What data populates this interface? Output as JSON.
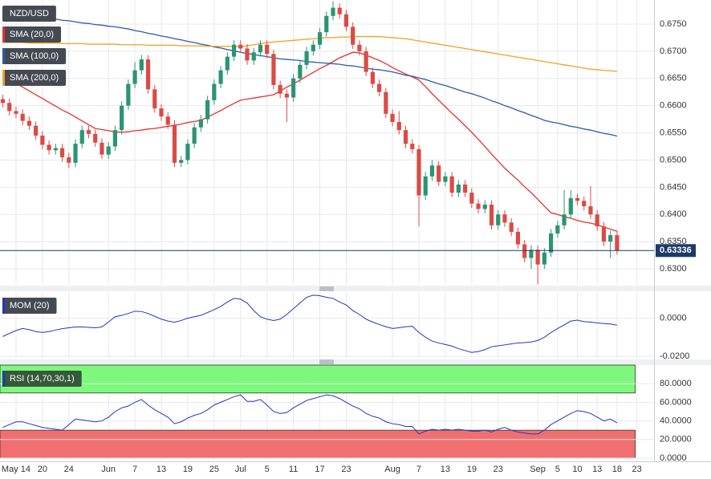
{
  "chart_data": {
    "type": "candlestick",
    "title": "NZD/USD",
    "categories": [
      null,
      null,
      "May 14",
      null,
      null,
      null,
      "20",
      null,
      null,
      null,
      "24",
      null,
      null,
      null,
      null,
      null,
      "Jun",
      null,
      null,
      null,
      "7",
      null,
      null,
      null,
      "13",
      null,
      null,
      null,
      "19",
      null,
      null,
      null,
      "25",
      null,
      null,
      null,
      "Jul",
      null,
      null,
      null,
      "5",
      null,
      null,
      null,
      "11",
      null,
      null,
      null,
      "17",
      null,
      null,
      null,
      "23",
      null,
      null,
      null,
      null,
      null,
      null,
      "Aug",
      null,
      null,
      null,
      "7",
      null,
      null,
      null,
      "13",
      null,
      null,
      null,
      "19",
      null,
      null,
      null,
      "23",
      null,
      null,
      null,
      null,
      null,
      "Sep",
      null,
      null,
      "5",
      null,
      null,
      "10",
      null,
      null,
      "13",
      null,
      null,
      "18",
      null,
      null,
      "23"
    ],
    "open": [
      0.6612,
      0.6605,
      0.659,
      0.6585,
      0.6572,
      0.6563,
      0.6545,
      0.6528,
      0.6518,
      0.6522,
      0.6505,
      0.6495,
      0.653,
      0.6555,
      0.6548,
      0.6532,
      0.651,
      0.6525,
      0.6555,
      0.66,
      0.664,
      0.6665,
      0.6685,
      0.663,
      0.6595,
      0.658,
      0.6565,
      0.6495,
      0.65,
      0.653,
      0.656,
      0.6575,
      0.661,
      0.664,
      0.6665,
      0.669,
      0.6712,
      0.6705,
      0.6683,
      0.6698,
      0.6712,
      0.6695,
      0.6638,
      0.6622,
      0.6615,
      0.665,
      0.6675,
      0.67,
      0.6712,
      0.6735,
      0.6765,
      0.678,
      0.6768,
      0.6745,
      0.6712,
      0.67,
      0.6662,
      0.664,
      0.6625,
      0.6585,
      0.657,
      0.6555,
      0.653,
      0.652,
      0.6435,
      0.647,
      0.649,
      0.646,
      0.647,
      0.644,
      0.6455,
      0.644,
      0.642,
      0.641,
      0.6418,
      0.638,
      0.64,
      0.6385,
      0.6368,
      0.6345,
      0.632,
      0.6335,
      0.6308,
      0.633,
      0.6365,
      0.638,
      0.64,
      0.643,
      0.6425,
      0.6415,
      0.64,
      0.6378,
      0.635,
      0.6362,
      null,
      null,
      null
    ],
    "high": [
      0.662,
      0.6613,
      0.6598,
      0.6593,
      0.658,
      0.6571,
      0.6553,
      0.6536,
      0.653,
      0.653,
      0.6513,
      0.6538,
      0.6563,
      0.6563,
      0.6556,
      0.654,
      0.6533,
      0.6563,
      0.6608,
      0.6648,
      0.668,
      0.6693,
      0.6693,
      0.6638,
      0.6603,
      0.6588,
      0.6573,
      0.6508,
      0.6538,
      0.6568,
      0.6583,
      0.6618,
      0.6648,
      0.6673,
      0.6698,
      0.672,
      0.672,
      0.6713,
      0.6706,
      0.672,
      0.672,
      0.6703,
      0.6646,
      0.663,
      0.6658,
      0.6683,
      0.6708,
      0.672,
      0.6743,
      0.6773,
      0.6792,
      0.6788,
      0.6776,
      0.6753,
      0.672,
      0.6708,
      0.667,
      0.6648,
      0.6633,
      0.6593,
      0.659,
      0.6563,
      0.6538,
      0.6528,
      0.6478,
      0.65,
      0.6498,
      0.6478,
      0.6478,
      0.6463,
      0.6463,
      0.6448,
      0.6428,
      0.6426,
      0.6426,
      0.6408,
      0.6408,
      0.6393,
      0.6376,
      0.6353,
      0.6343,
      0.6343,
      0.6338,
      0.6373,
      0.6388,
      0.6445,
      0.6445,
      0.6438,
      0.6433,
      0.6452,
      0.6408,
      0.6386,
      0.637,
      0.637,
      null,
      null,
      null
    ],
    "low": [
      0.6597,
      0.6582,
      0.6577,
      0.6564,
      0.6555,
      0.6537,
      0.652,
      0.651,
      0.651,
      0.6497,
      0.6485,
      0.6487,
      0.6522,
      0.654,
      0.6524,
      0.6502,
      0.6502,
      0.6517,
      0.6547,
      0.6592,
      0.6632,
      0.6657,
      0.6622,
      0.6587,
      0.6572,
      0.6557,
      0.6487,
      0.6487,
      0.6492,
      0.6522,
      0.6552,
      0.6567,
      0.6602,
      0.6632,
      0.6657,
      0.6682,
      0.6697,
      0.6675,
      0.6675,
      0.669,
      0.6687,
      0.663,
      0.6614,
      0.657,
      0.6607,
      0.6642,
      0.6667,
      0.6692,
      0.6704,
      0.6727,
      0.6757,
      0.676,
      0.6737,
      0.6704,
      0.6692,
      0.6654,
      0.6632,
      0.6617,
      0.6577,
      0.6562,
      0.6547,
      0.6522,
      0.6512,
      0.6378,
      0.6427,
      0.6462,
      0.6452,
      0.6452,
      0.6432,
      0.6432,
      0.6432,
      0.6412,
      0.6402,
      0.6402,
      0.6372,
      0.6372,
      0.6377,
      0.636,
      0.6337,
      0.6312,
      0.63,
      0.6272,
      0.63,
      0.6322,
      0.6357,
      0.6372,
      0.6392,
      0.6417,
      0.6407,
      0.6392,
      0.637,
      0.6342,
      0.632,
      0.6326,
      null,
      null,
      null
    ],
    "close": [
      0.6605,
      0.659,
      0.6585,
      0.6572,
      0.6563,
      0.6545,
      0.6528,
      0.6518,
      0.6522,
      0.6505,
      0.6495,
      0.653,
      0.6555,
      0.6548,
      0.6532,
      0.651,
      0.6525,
      0.6555,
      0.66,
      0.664,
      0.6665,
      0.6685,
      0.663,
      0.6595,
      0.658,
      0.6565,
      0.6495,
      0.65,
      0.653,
      0.656,
      0.6575,
      0.661,
      0.664,
      0.6665,
      0.669,
      0.6712,
      0.6705,
      0.6683,
      0.6698,
      0.6712,
      0.6695,
      0.6638,
      0.6622,
      0.6615,
      0.665,
      0.6675,
      0.67,
      0.6712,
      0.6735,
      0.6765,
      0.678,
      0.6768,
      0.6745,
      0.6712,
      0.67,
      0.6662,
      0.664,
      0.6625,
      0.6585,
      0.657,
      0.6555,
      0.653,
      0.652,
      0.6435,
      0.647,
      0.649,
      0.646,
      0.647,
      0.644,
      0.6455,
      0.644,
      0.642,
      0.641,
      0.6418,
      0.638,
      0.64,
      0.6385,
      0.6368,
      0.6345,
      0.632,
      0.6335,
      0.6308,
      0.633,
      0.6365,
      0.638,
      0.64,
      0.643,
      0.6425,
      0.6415,
      0.64,
      0.6378,
      0.635,
      0.6362,
      0.63336,
      null,
      null,
      null
    ],
    "up_color": "#2b9474",
    "down_color": "#dc4a44",
    "ylim": [
      0.62706,
      0.67942
    ],
    "yticks": [
      {
        "value": 0.63,
        "label": "0.6300"
      },
      {
        "value": 0.635,
        "label": "0.6350"
      },
      {
        "value": 0.64,
        "label": "0.6400"
      },
      {
        "value": 0.645,
        "label": "0.6450"
      },
      {
        "value": 0.65,
        "label": "0.6500"
      },
      {
        "value": 0.655,
        "label": "0.6550"
      },
      {
        "value": 0.66,
        "label": "0.6600"
      },
      {
        "value": 0.665,
        "label": "0.6650"
      },
      {
        "value": 0.67,
        "label": "0.6700"
      },
      {
        "value": 0.675,
        "label": "0.6750"
      }
    ],
    "last_price": 0.63336,
    "grid": true,
    "overlays": [
      {
        "name": "SMA (20,0)",
        "color": "#e8322b",
        "values": [
          0.6655,
          0.6648,
          0.6641,
          0.6634,
          0.6627,
          0.662,
          0.6613,
          0.6606,
          0.6599,
          0.6592,
          0.6586,
          0.6579,
          0.6572,
          0.6565,
          0.6558,
          0.6556,
          0.6554,
          0.6552,
          0.6551,
          0.6552,
          0.6554,
          0.6555,
          0.6557,
          0.6558,
          0.656,
          0.6562,
          0.6564,
          0.6566,
          0.6569,
          0.6571,
          0.6573,
          0.6579,
          0.6585,
          0.6591,
          0.6598,
          0.6604,
          0.661,
          0.6612,
          0.6614,
          0.6616,
          0.6618,
          0.662,
          0.6627,
          0.6634,
          0.664,
          0.6647,
          0.6654,
          0.6661,
          0.6668,
          0.6674,
          0.6681,
          0.6688,
          0.6693,
          0.6698,
          0.6697,
          0.6693,
          0.6688,
          0.6683,
          0.6677,
          0.667,
          0.6664,
          0.6658,
          0.6653,
          0.6647,
          0.6635,
          0.6622,
          0.661,
          0.6598,
          0.6586,
          0.6575,
          0.6563,
          0.6551,
          0.6538,
          0.6525,
          0.6511,
          0.6498,
          0.6485,
          0.6474,
          0.6463,
          0.6451,
          0.644,
          0.6428,
          0.6415,
          0.6403,
          0.64,
          0.6396,
          0.6393,
          0.6389,
          0.6386,
          0.6384,
          0.6381,
          0.6377,
          0.6373,
          0.6369,
          null,
          null,
          null
        ]
      },
      {
        "name": "SMA (100,0)",
        "color": "#2b5ca8",
        "values": [
          0.6772,
          0.677,
          0.6769,
          0.6767,
          0.6765,
          0.6764,
          0.6762,
          0.6761,
          0.6759,
          0.6757,
          0.6756,
          0.6754,
          0.6752,
          0.6751,
          0.6749,
          0.6748,
          0.6746,
          0.6745,
          0.6743,
          0.6741,
          0.6738,
          0.6736,
          0.6733,
          0.6731,
          0.6728,
          0.6726,
          0.6723,
          0.6721,
          0.6718,
          0.6716,
          0.6713,
          0.6711,
          0.6708,
          0.6706,
          0.6703,
          0.6701,
          0.6698,
          0.6696,
          0.6694,
          0.6692,
          0.669,
          0.6688,
          0.6686,
          0.6685,
          0.6684,
          0.6683,
          0.6681,
          0.668,
          0.6679,
          0.6678,
          0.6677,
          0.6676,
          0.6674,
          0.6673,
          0.6671,
          0.6669,
          0.6667,
          0.6666,
          0.6664,
          0.6662,
          0.6659,
          0.6656,
          0.6654,
          0.6651,
          0.6648,
          0.6644,
          0.664,
          0.6637,
          0.6633,
          0.6629,
          0.6625,
          0.6622,
          0.6618,
          0.6614,
          0.6609,
          0.6605,
          0.66,
          0.6596,
          0.6591,
          0.6587,
          0.6582,
          0.6578,
          0.6573,
          0.657,
          0.6568,
          0.6565,
          0.6562,
          0.656,
          0.6557,
          0.6555,
          0.6552,
          0.6549,
          0.6547,
          0.6544,
          null,
          null,
          null
        ]
      },
      {
        "name": "SMA (200,0)",
        "color": "#f5a020",
        "values": [
          0.6716,
          0.6716,
          0.6716,
          0.6716,
          0.6715,
          0.6715,
          0.6715,
          0.6715,
          0.6715,
          0.6714,
          0.6714,
          0.6714,
          0.6714,
          0.6713,
          0.6713,
          0.6713,
          0.6713,
          0.6713,
          0.6712,
          0.6712,
          0.6712,
          0.6712,
          0.6711,
          0.6711,
          0.6711,
          0.6711,
          0.6711,
          0.671,
          0.671,
          0.671,
          0.671,
          0.6709,
          0.6709,
          0.6709,
          0.6709,
          0.6709,
          0.6708,
          0.671,
          0.6712,
          0.6714,
          0.6716,
          0.6717,
          0.6718,
          0.6719,
          0.672,
          0.6721,
          0.6722,
          0.6723,
          0.6724,
          0.6725,
          0.6725,
          0.6726,
          0.6726,
          0.6727,
          0.6727,
          0.6727,
          0.6727,
          0.6727,
          0.6726,
          0.6725,
          0.6724,
          0.6723,
          0.6721,
          0.6719,
          0.6717,
          0.6715,
          0.6713,
          0.6711,
          0.6709,
          0.6707,
          0.6705,
          0.6703,
          0.6701,
          0.6699,
          0.6697,
          0.6695,
          0.6693,
          0.6691,
          0.6689,
          0.6687,
          0.6685,
          0.6683,
          0.6681,
          0.6679,
          0.6677,
          0.6675,
          0.6673,
          0.6671,
          0.6669,
          0.6667,
          0.6666,
          0.6665,
          0.6664,
          0.6663,
          null,
          null,
          null
        ]
      }
    ],
    "indicators": [
      {
        "type": "line",
        "name": "MOM (20)",
        "color": "#2236c0",
        "ylim": [
          -0.02125,
          0.01375
        ],
        "yticks": [
          {
            "value": 0,
            "label": "0.0000"
          },
          {
            "value": -0.02,
            "label": "-0.0200"
          }
        ],
        "values": [
          -0.0096,
          -0.008,
          -0.0065,
          -0.0054,
          -0.006,
          -0.007,
          -0.0075,
          -0.007,
          -0.0062,
          -0.0055,
          -0.005,
          -0.0046,
          -0.0046,
          -0.0048,
          -0.005,
          -0.0046,
          -0.002,
          0.0008,
          0.0015,
          0.0025,
          0.0037,
          0.0035,
          0.0025,
          0.001,
          -0.0005,
          -0.0015,
          -0.0021,
          -0.0012,
          0.0,
          0.0008,
          0.0015,
          0.003,
          0.0045,
          0.0062,
          0.0085,
          0.0104,
          0.01,
          0.008,
          0.004,
          0.0008,
          -0.0005,
          -0.0012,
          -0.0005,
          0.002,
          0.005,
          0.008,
          0.011,
          0.0121,
          0.0118,
          0.011,
          0.0104,
          0.0085,
          0.007,
          0.004,
          0.002,
          -0.0005,
          -0.002,
          -0.0033,
          -0.0045,
          -0.0054,
          -0.005,
          -0.0045,
          -0.0042,
          -0.0075,
          -0.01,
          -0.012,
          -0.013,
          -0.0138,
          -0.0146,
          -0.016,
          -0.017,
          -0.018,
          -0.0175,
          -0.0165,
          -0.015,
          -0.0145,
          -0.014,
          -0.0135,
          -0.013,
          -0.0128,
          -0.0125,
          -0.0117,
          -0.01,
          -0.0075,
          -0.0054,
          -0.0035,
          -0.0015,
          -0.001,
          -0.0018,
          -0.002,
          -0.0025,
          -0.0028,
          -0.003,
          -0.0037,
          null,
          null,
          null
        ]
      },
      {
        "type": "line",
        "name": "RSI (14,70,30,1)",
        "color": "#2236c0",
        "ylim": [
          -2.61,
          100
        ],
        "yticks": [
          {
            "value": 0,
            "label": "0.0000"
          },
          {
            "value": 20,
            "label": "20.0000"
          },
          {
            "value": 40,
            "label": "40.0000"
          },
          {
            "value": 60,
            "label": "60.0000"
          },
          {
            "value": 80,
            "label": "80.0000"
          }
        ],
        "bands": [
          {
            "from": 70,
            "to": 100,
            "color": "#7ef87c"
          },
          {
            "from": 0,
            "to": 30,
            "color": "#f26f6f"
          }
        ],
        "values": [
          33,
          36,
          39,
          39,
          37,
          35,
          33,
          32,
          31,
          30,
          36,
          42,
          41,
          40,
          39,
          40,
          44,
          50,
          54,
          56,
          60,
          63,
          57,
          52,
          48,
          44,
          37,
          39,
          43,
          46,
          48,
          52,
          57,
          60,
          63,
          66,
          68,
          61,
          61,
          63,
          57,
          50,
          48,
          49,
          54,
          58,
          62,
          64,
          66,
          68,
          67,
          64,
          60,
          56,
          53,
          48,
          45,
          43,
          39,
          37,
          36,
          34,
          34,
          26,
          29,
          31,
          30,
          31,
          30,
          31,
          30,
          29,
          29,
          30,
          28,
          31,
          33,
          30,
          28,
          27,
          26,
          26,
          30,
          36,
          40,
          44,
          48,
          51,
          50,
          48,
          44,
          40,
          42,
          38,
          null,
          null,
          null
        ]
      }
    ]
  }
}
